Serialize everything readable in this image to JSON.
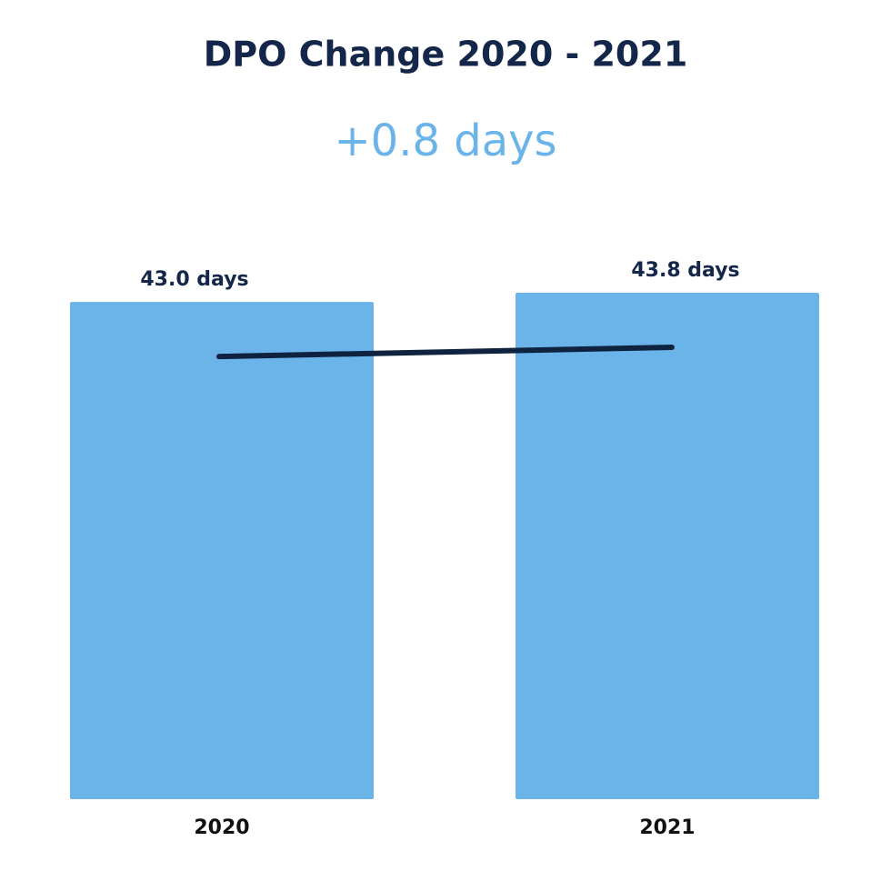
{
  "chart_data": {
    "type": "bar",
    "title": "DPO Change 2020 - 2021",
    "subtitle": "+0.8 days",
    "categories": [
      "2020",
      "2021"
    ],
    "values": [
      43.0,
      43.8
    ],
    "value_labels": [
      "43.0 days",
      "43.8 days"
    ],
    "color": "#6bb4ea",
    "line_color": "#0f2340"
  }
}
